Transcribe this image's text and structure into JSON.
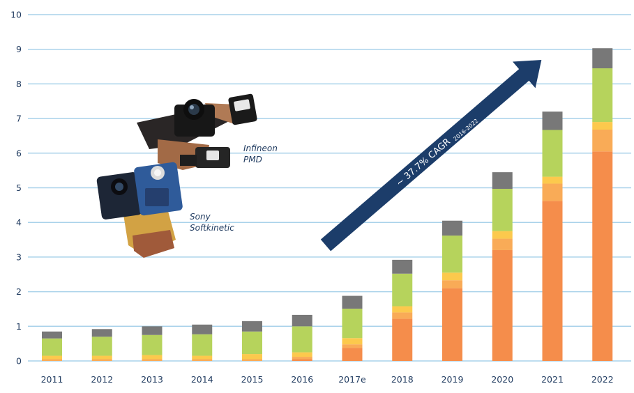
{
  "chart_data": {
    "type": "bar",
    "stacked": true,
    "categories": [
      "2011",
      "2012",
      "2013",
      "2014",
      "2015",
      "2016",
      "2017e",
      "2018",
      "2019",
      "2020",
      "2021",
      "2022"
    ],
    "series": [
      {
        "color": "#f58d4b",
        "values": [
          0.0,
          0.0,
          0.0,
          0.0,
          0.0,
          0.05,
          0.38,
          1.22,
          2.1,
          3.2,
          4.62,
          6.05
        ]
      },
      {
        "color": "#f9ab57",
        "values": [
          0.05,
          0.05,
          0.05,
          0.05,
          0.05,
          0.07,
          0.1,
          0.18,
          0.23,
          0.33,
          0.5,
          0.63
        ]
      },
      {
        "color": "#fcc94d",
        "values": [
          0.1,
          0.1,
          0.12,
          0.1,
          0.15,
          0.13,
          0.18,
          0.18,
          0.22,
          0.22,
          0.2,
          0.22
        ]
      },
      {
        "color": "#b6d35c",
        "values": [
          0.5,
          0.55,
          0.58,
          0.62,
          0.65,
          0.75,
          0.85,
          0.94,
          1.07,
          1.22,
          1.35,
          1.55
        ]
      },
      {
        "color": "#787878",
        "values": [
          0.2,
          0.22,
          0.25,
          0.28,
          0.3,
          0.33,
          0.37,
          0.4,
          0.43,
          0.48,
          0.53,
          0.58
        ]
      }
    ],
    "ylim": [
      0,
      10
    ],
    "yticks": [
      0,
      1,
      2,
      3,
      4,
      5,
      6,
      7,
      8,
      9,
      10
    ],
    "grid": true,
    "annotation": {
      "main": "~ 37.7% CAGR",
      "sub": "2016-2022"
    }
  },
  "labels": {
    "infineon_line1": "Infineon",
    "infineon_line2": "PMD",
    "sony_line1": "Sony",
    "sony_line2": "Softkinetic"
  },
  "colors": {
    "grid": "#a9d2ea",
    "axis_text": "#1f3a5f",
    "arrow": "#1c3d6a"
  },
  "images": [
    "camera-module-photo-icon"
  ]
}
